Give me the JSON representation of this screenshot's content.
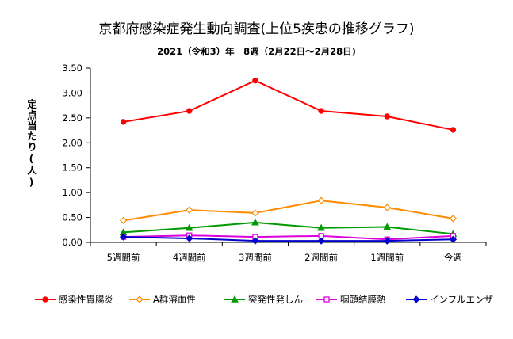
{
  "chart_data": {
    "type": "line",
    "title": "京都府感染症発生動向調査(上位5疾患の推移グラフ)",
    "subtitle": "2021（令和3）年　8週（2月22日～2月28日)",
    "ylabel": "定点当たり(人)",
    "xlabel": "",
    "ylim": [
      0,
      3.5
    ],
    "yticks": [
      "0.00",
      "0.50",
      "1.00",
      "1.50",
      "2.00",
      "2.50",
      "3.00",
      "3.50"
    ],
    "categories": [
      "5週間前",
      "4週間前",
      "3週間前",
      "2週間前",
      "1週間前",
      "今週"
    ],
    "grid": false,
    "legend_position": "bottom",
    "series": [
      {
        "name": "感染性胃腸炎",
        "color": "#ff0000",
        "marker": "circle",
        "values": [
          2.42,
          2.64,
          3.25,
          2.64,
          2.53,
          2.26
        ]
      },
      {
        "name": "A群溶血性",
        "color": "#ff8c00",
        "marker": "diamond",
        "values": [
          0.44,
          0.65,
          0.59,
          0.84,
          0.7,
          0.48
        ]
      },
      {
        "name": "突発性発しん",
        "color": "#009900",
        "marker": "triangle",
        "values": [
          0.2,
          0.29,
          0.4,
          0.29,
          0.31,
          0.17
        ]
      },
      {
        "name": "咽頭結膜熱",
        "color": "#dd00dd",
        "marker": "square",
        "values": [
          0.11,
          0.14,
          0.11,
          0.13,
          0.06,
          0.13
        ]
      },
      {
        "name": "インフルエンザ",
        "color": "#0000cc",
        "marker": "diamond",
        "values": [
          0.11,
          0.08,
          0.03,
          0.03,
          0.03,
          0.06
        ]
      }
    ]
  }
}
